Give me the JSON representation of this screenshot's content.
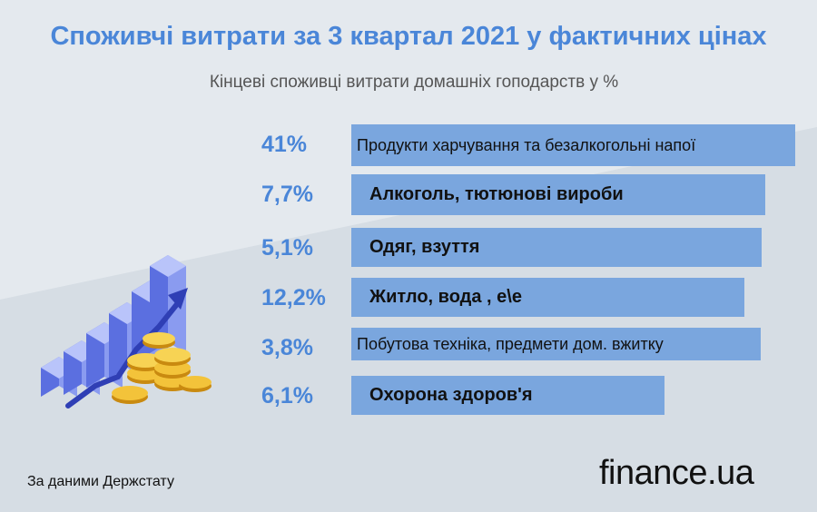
{
  "header": {
    "title": "Споживчі витрати за 3 квартал 2021 у фактичних цінах",
    "subtitle": "Кінцеві споживці витрати домашніх гоподарств у %"
  },
  "chart_data": {
    "type": "bar",
    "orientation": "horizontal",
    "title": "Споживчі витрати за 3 квартал 2021 у фактичних цінах",
    "subtitle": "Кінцеві споживці витрати домашніх гоподарств у %",
    "categories": [
      "Продукти харчування та безалкогольні напої",
      "Алкоголь, тютюнові вироби",
      "Одяг, взуття",
      "Житло, вода , е\\е",
      "Побутова техніка, предмети дом. вжитку",
      "Охорона здоров'я"
    ],
    "values": [
      41,
      7.7,
      5.1,
      12.2,
      3.8,
      6.1
    ],
    "value_labels": [
      "41%",
      "7,7%",
      "5,1%",
      "12,2%",
      "3,8%",
      "6,1%"
    ],
    "unit": "%"
  },
  "footer": {
    "source": "За даними Держстату",
    "logo_main": "finance",
    "logo_dot": ".",
    "logo_suffix": "ua"
  },
  "colors": {
    "accent": "#4a86d8",
    "bar": "#7aa6de",
    "background": "#dde4ea"
  }
}
